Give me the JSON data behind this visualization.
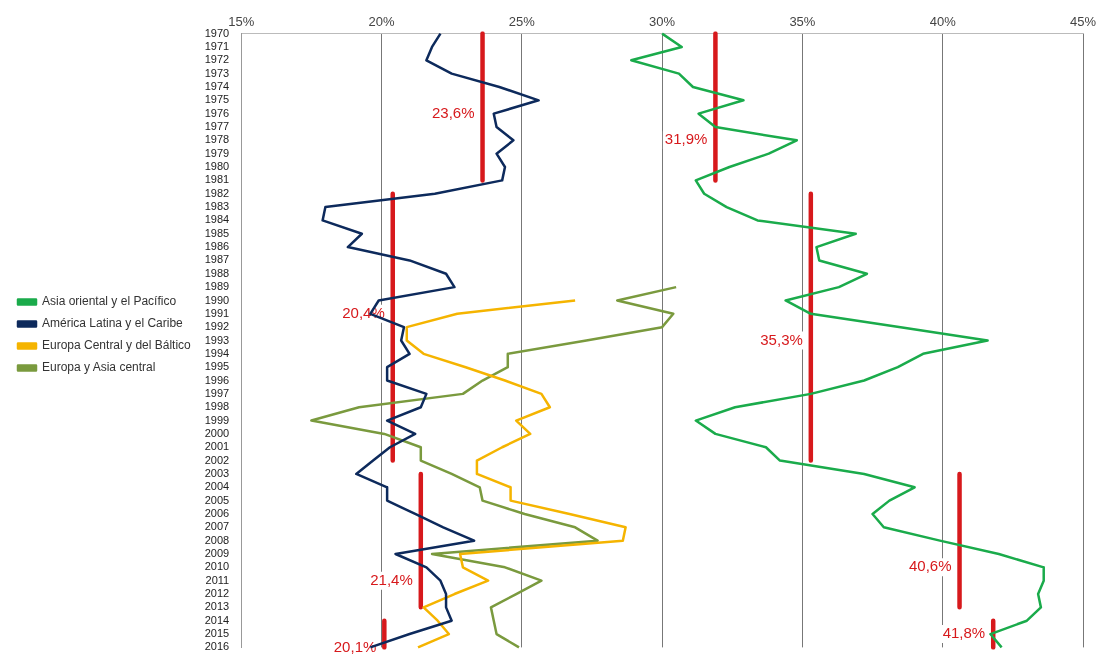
{
  "chart_data": {
    "type": "line",
    "orientation": "horizontal",
    "categories": [
      "1970",
      "1971",
      "1972",
      "1973",
      "1974",
      "1975",
      "1976",
      "1977",
      "1978",
      "1979",
      "1980",
      "1981",
      "1982",
      "1983",
      "1984",
      "1985",
      "1986",
      "1987",
      "1988",
      "1989",
      "1990",
      "1991",
      "1992",
      "1993",
      "1994",
      "1995",
      "1996",
      "1997",
      "1998",
      "1999",
      "2000",
      "2001",
      "2002",
      "2003",
      "2004",
      "2005",
      "2006",
      "2007",
      "2008",
      "2009",
      "2010",
      "2011",
      "2012",
      "2013",
      "2014",
      "2015",
      "2016"
    ],
    "xlim": [
      15,
      45
    ],
    "xticks": [
      {
        "value": 15,
        "label": "15%"
      },
      {
        "value": 20,
        "label": "20%"
      },
      {
        "value": 25,
        "label": "25%"
      },
      {
        "value": 30,
        "label": "30%"
      },
      {
        "value": 35,
        "label": "35%"
      },
      {
        "value": 40,
        "label": "40%"
      },
      {
        "value": 45,
        "label": "45%"
      }
    ],
    "grid": "x",
    "legend": "left",
    "marker": "none",
    "line_style": "solid",
    "series": [
      {
        "name": "Asia oriental y el Pacífico",
        "color": "#1aab4b",
        "values": [
          30.0,
          30.7,
          28.9,
          30.6,
          31.1,
          32.9,
          31.3,
          31.9,
          34.8,
          33.8,
          32.4,
          31.2,
          31.5,
          32.3,
          33.4,
          36.9,
          35.5,
          35.6,
          37.3,
          36.3,
          34.4,
          35.3,
          38.5,
          41.6,
          39.3,
          38.4,
          37.2,
          35.3,
          32.6,
          31.2,
          31.9,
          33.7,
          34.2,
          37.2,
          39.0,
          38.1,
          37.5,
          37.9,
          39.9,
          42.0,
          43.6,
          43.6,
          43.4,
          43.5,
          43.0,
          41.7,
          42.1
        ]
      },
      {
        "name": "América Latina y el Caribe",
        "color": "#0d2a5c",
        "values": [
          22.1,
          21.8,
          21.6,
          22.5,
          24.2,
          25.6,
          24.0,
          24.1,
          24.7,
          24.1,
          24.4,
          24.3,
          21.9,
          18.0,
          17.9,
          19.3,
          18.8,
          21.0,
          22.3,
          22.6,
          19.9,
          19.6,
          20.8,
          20.7,
          21.0,
          20.2,
          20.2,
          21.6,
          21.4,
          20.2,
          21.2,
          20.3,
          19.7,
          19.1,
          20.2,
          20.2,
          21.2,
          22.2,
          23.3,
          20.5,
          21.6,
          22.1,
          22.3,
          22.3,
          22.5,
          21.0,
          19.6
        ]
      },
      {
        "name": "Europa Central y del Báltico",
        "color": "#f5b400",
        "values": [
          null,
          null,
          null,
          null,
          null,
          null,
          null,
          null,
          null,
          null,
          null,
          null,
          null,
          null,
          null,
          null,
          null,
          null,
          null,
          null,
          26.9,
          22.7,
          20.9,
          20.9,
          21.5,
          23.0,
          24.4,
          25.7,
          26.0,
          24.8,
          25.3,
          24.3,
          23.4,
          23.4,
          24.6,
          24.6,
          26.7,
          28.7,
          28.6,
          22.8,
          22.9,
          23.8,
          22.6,
          21.5,
          22.0,
          22.4,
          21.3
        ]
      },
      {
        "name": "Europa y Asia central",
        "color": "#7a9a3e",
        "values": [
          null,
          null,
          null,
          null,
          null,
          null,
          null,
          null,
          null,
          null,
          null,
          null,
          null,
          null,
          null,
          null,
          null,
          null,
          null,
          30.5,
          28.4,
          30.4,
          30.0,
          27.3,
          24.5,
          24.5,
          23.6,
          22.9,
          19.2,
          17.5,
          20.1,
          21.4,
          21.4,
          22.5,
          23.5,
          23.6,
          25.1,
          26.9,
          27.7,
          21.8,
          24.4,
          25.7,
          24.8,
          23.9,
          24.0,
          24.1,
          24.9
        ]
      },
      {
        "color": "#d7191c",
        "values": [
          31.9,
          31.9,
          31.9,
          31.9,
          31.9,
          31.9,
          31.9,
          31.9,
          31.9,
          31.9,
          31.9,
          31.9,
          null,
          null,
          null,
          null,
          null,
          null,
          null,
          null,
          null,
          null,
          null,
          null,
          null,
          null,
          null,
          null,
          null,
          null,
          null,
          null,
          null,
          null,
          null,
          null,
          null,
          null,
          null,
          null,
          null,
          null,
          null,
          null,
          null,
          null,
          null
        ],
        "value_labels": [
          null,
          null,
          null,
          null,
          null,
          null,
          null,
          null,
          "31,9%",
          null,
          null,
          null,
          null,
          null,
          null,
          null,
          null,
          null,
          null,
          null,
          null,
          null,
          null,
          null,
          null,
          null,
          null,
          null,
          null,
          null,
          null,
          null,
          null,
          null,
          null,
          null,
          null,
          null,
          null,
          null,
          null,
          null,
          null,
          null,
          null,
          null,
          null
        ]
      },
      {
        "color": "#d7191c",
        "values": [
          null,
          null,
          null,
          null,
          null,
          null,
          null,
          null,
          null,
          null,
          null,
          null,
          35.3,
          35.3,
          35.3,
          35.3,
          35.3,
          35.3,
          35.3,
          35.3,
          35.3,
          35.3,
          35.3,
          35.3,
          35.3,
          35.3,
          35.3,
          35.3,
          35.3,
          35.3,
          35.3,
          35.3,
          35.3,
          null,
          null,
          null,
          null,
          null,
          null,
          null,
          null,
          null,
          null,
          null,
          null,
          null,
          null
        ],
        "value_labels": [
          null,
          null,
          null,
          null,
          null,
          null,
          null,
          null,
          null,
          null,
          null,
          null,
          null,
          null,
          null,
          null,
          null,
          null,
          null,
          null,
          null,
          null,
          null,
          "35,3%",
          null,
          null,
          null,
          null,
          null,
          null,
          null,
          null,
          null,
          null,
          null,
          null,
          null,
          null,
          null,
          null,
          null,
          null,
          null,
          null,
          null,
          null,
          null
        ]
      },
      {
        "color": "#d7191c",
        "values": [
          null,
          null,
          null,
          null,
          null,
          null,
          null,
          null,
          null,
          null,
          null,
          null,
          null,
          null,
          null,
          null,
          null,
          null,
          null,
          null,
          null,
          null,
          null,
          null,
          null,
          null,
          null,
          null,
          null,
          null,
          null,
          null,
          null,
          40.6,
          40.6,
          40.6,
          40.6,
          40.6,
          40.6,
          40.6,
          40.6,
          40.6,
          40.6,
          40.6,
          null,
          null,
          null
        ],
        "value_labels": [
          null,
          null,
          null,
          null,
          null,
          null,
          null,
          null,
          null,
          null,
          null,
          null,
          null,
          null,
          null,
          null,
          null,
          null,
          null,
          null,
          null,
          null,
          null,
          null,
          null,
          null,
          null,
          null,
          null,
          null,
          null,
          null,
          null,
          null,
          null,
          null,
          null,
          null,
          null,
          null,
          "40,6%",
          null,
          null,
          null,
          null,
          null,
          null
        ]
      },
      {
        "color": "#d7191c",
        "values": [
          null,
          null,
          null,
          null,
          null,
          null,
          null,
          null,
          null,
          null,
          null,
          null,
          null,
          null,
          null,
          null,
          null,
          null,
          null,
          null,
          null,
          null,
          null,
          null,
          null,
          null,
          null,
          null,
          null,
          null,
          null,
          null,
          null,
          null,
          null,
          null,
          null,
          null,
          null,
          null,
          null,
          null,
          null,
          null,
          41.8,
          41.8,
          41.8
        ],
        "value_labels": [
          null,
          null,
          null,
          null,
          null,
          null,
          null,
          null,
          null,
          null,
          null,
          null,
          null,
          null,
          null,
          null,
          null,
          null,
          null,
          null,
          null,
          null,
          null,
          null,
          null,
          null,
          null,
          null,
          null,
          null,
          null,
          null,
          null,
          null,
          null,
          null,
          null,
          null,
          null,
          null,
          null,
          null,
          null,
          null,
          null,
          "41,8%",
          null
        ]
      },
      {
        "color": "#d7191c",
        "values": [
          23.6,
          23.6,
          23.6,
          23.6,
          23.6,
          23.6,
          23.6,
          23.6,
          23.6,
          23.6,
          23.6,
          23.6,
          null,
          null,
          null,
          null,
          null,
          null,
          null,
          null,
          null,
          null,
          null,
          null,
          null,
          null,
          null,
          null,
          null,
          null,
          null,
          null,
          null,
          null,
          null,
          null,
          null,
          null,
          null,
          null,
          null,
          null,
          null,
          null,
          null,
          null,
          null
        ],
        "value_labels": [
          null,
          null,
          null,
          null,
          null,
          null,
          "23,6%",
          null,
          null,
          null,
          null,
          null,
          null,
          null,
          null,
          null,
          null,
          null,
          null,
          null,
          null,
          null,
          null,
          null,
          null,
          null,
          null,
          null,
          null,
          null,
          null,
          null,
          null,
          null,
          null,
          null,
          null,
          null,
          null,
          null,
          null,
          null,
          null,
          null,
          null,
          null,
          null
        ]
      },
      {
        "color": "#d7191c",
        "values": [
          null,
          null,
          null,
          null,
          null,
          null,
          null,
          null,
          null,
          null,
          null,
          null,
          20.4,
          20.4,
          20.4,
          20.4,
          20.4,
          20.4,
          20.4,
          20.4,
          20.4,
          20.4,
          20.4,
          20.4,
          20.4,
          20.4,
          20.4,
          20.4,
          20.4,
          20.4,
          20.4,
          20.4,
          20.4,
          null,
          null,
          null,
          null,
          null,
          null,
          null,
          null,
          null,
          null,
          null,
          null,
          null,
          null
        ],
        "value_labels": [
          null,
          null,
          null,
          null,
          null,
          null,
          null,
          null,
          null,
          null,
          null,
          null,
          null,
          null,
          null,
          null,
          null,
          null,
          null,
          null,
          null,
          "20,4%",
          null,
          null,
          null,
          null,
          null,
          null,
          null,
          null,
          null,
          null,
          null,
          null,
          null,
          null,
          null,
          null,
          null,
          null,
          null,
          null,
          null,
          null,
          null,
          null,
          null
        ]
      },
      {
        "color": "#d7191c",
        "values": [
          null,
          null,
          null,
          null,
          null,
          null,
          null,
          null,
          null,
          null,
          null,
          null,
          null,
          null,
          null,
          null,
          null,
          null,
          null,
          null,
          null,
          null,
          null,
          null,
          null,
          null,
          null,
          null,
          null,
          null,
          null,
          null,
          null,
          21.4,
          21.4,
          21.4,
          21.4,
          21.4,
          21.4,
          21.4,
          21.4,
          21.4,
          21.4,
          21.4,
          null,
          null,
          null
        ],
        "value_labels": [
          null,
          null,
          null,
          null,
          null,
          null,
          null,
          null,
          null,
          null,
          null,
          null,
          null,
          null,
          null,
          null,
          null,
          null,
          null,
          null,
          null,
          null,
          null,
          null,
          null,
          null,
          null,
          null,
          null,
          null,
          null,
          null,
          null,
          null,
          null,
          null,
          null,
          null,
          null,
          null,
          null,
          "21,4%",
          null,
          null,
          null,
          null,
          null
        ]
      },
      {
        "color": "#d7191c",
        "values": [
          null,
          null,
          null,
          null,
          null,
          null,
          null,
          null,
          null,
          null,
          null,
          null,
          null,
          null,
          null,
          null,
          null,
          null,
          null,
          null,
          null,
          null,
          null,
          null,
          null,
          null,
          null,
          null,
          null,
          null,
          null,
          null,
          null,
          null,
          null,
          null,
          null,
          null,
          null,
          null,
          null,
          null,
          null,
          null,
          20.1,
          20.1,
          20.1
        ],
        "value_labels": [
          null,
          null,
          null,
          null,
          null,
          null,
          null,
          null,
          null,
          null,
          null,
          null,
          null,
          null,
          null,
          null,
          null,
          null,
          null,
          null,
          null,
          null,
          null,
          null,
          null,
          null,
          null,
          null,
          null,
          null,
          null,
          null,
          null,
          null,
          null,
          null,
          null,
          null,
          null,
          null,
          null,
          null,
          null,
          null,
          null,
          null,
          "20,1%"
        ]
      }
    ]
  }
}
